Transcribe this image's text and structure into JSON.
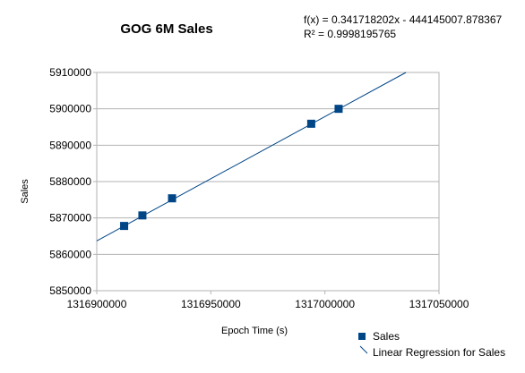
{
  "chart_data": {
    "type": "scatter",
    "title": "GOG 6M Sales",
    "xlabel": "Epoch Time (s)",
    "ylabel": "Sales",
    "xlim": [
      1316900000,
      1317050000
    ],
    "ylim": [
      5850000,
      5910000
    ],
    "x_ticks": [
      "1316900000",
      "1316950000",
      "1317000000",
      "1317050000"
    ],
    "y_ticks": [
      "5850000",
      "5860000",
      "5870000",
      "5880000",
      "5890000",
      "5900000",
      "5910000"
    ],
    "grid": "horizontal",
    "series": [
      {
        "name": "Sales",
        "color": "#004586",
        "points": [
          {
            "x": 1316912000,
            "y": 5867800
          },
          {
            "x": 1316920000,
            "y": 5870700
          },
          {
            "x": 1316933000,
            "y": 5875400
          },
          {
            "x": 1316994000,
            "y": 5895900
          },
          {
            "x": 1317006000,
            "y": 5900000
          }
        ]
      }
    ],
    "trendline": {
      "name": "Linear Regression for Sales",
      "color": "#004586",
      "slope": 0.341718202,
      "intercept": -444145007.878367,
      "equation": "f(x) = 0.341718202x - 444145007.878367",
      "r_squared": "R² = 0.9998195765"
    },
    "legend_position": "bottom-right"
  }
}
